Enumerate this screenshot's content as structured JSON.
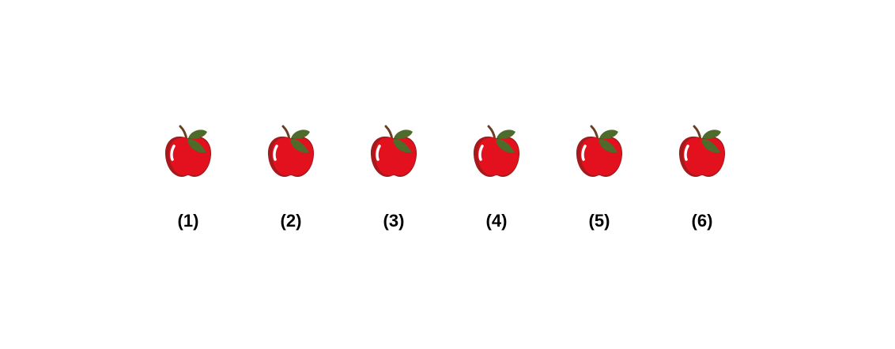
{
  "items": [
    {
      "label": "(1)",
      "icon": "apple-icon"
    },
    {
      "label": "(2)",
      "icon": "apple-icon"
    },
    {
      "label": "(3)",
      "icon": "apple-icon"
    },
    {
      "label": "(4)",
      "icon": "apple-icon"
    },
    {
      "label": "(5)",
      "icon": "apple-icon"
    },
    {
      "label": "(6)",
      "icon": "apple-icon"
    }
  ],
  "colors": {
    "apple_body": "#e3101d",
    "apple_shade": "#a51a1c",
    "leaf": "#4e6b2b",
    "stem": "#6b3d22",
    "label": "#000000",
    "background": "#ffffff"
  }
}
